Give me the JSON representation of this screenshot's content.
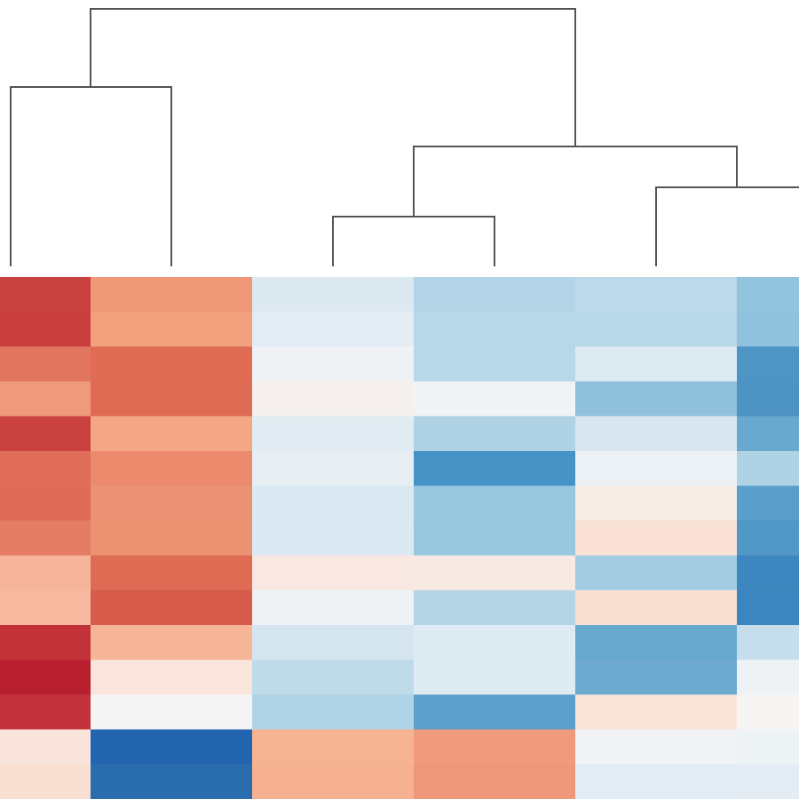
{
  "chart_data": {
    "type": "heatmap",
    "colors": [
      [
        "#c94040",
        "#ef9878",
        "#dde9f1",
        "#b3d4e6",
        "#bcd9ea",
        "#93c4de"
      ],
      [
        "#c83d3d",
        "#f2a17e",
        "#e3edf3",
        "#b8d7e8",
        "#b9d8e9",
        "#90c2dd"
      ],
      [
        "#e27560",
        "#e06c56",
        "#eef2f5",
        "#b8d7e8",
        "#dceaf2",
        "#4e94c5"
      ],
      [
        "#ef9a7a",
        "#df6b55",
        "#f5f0ee",
        "#f1f3f5",
        "#8fc1dd",
        "#4d93c4"
      ],
      [
        "#c94240",
        "#f4a784",
        "#e1ebf2",
        "#b0d2e5",
        "#d8e7f1",
        "#6aa9cf"
      ],
      [
        "#e06d58",
        "#eb8a6d",
        "#e6eef4",
        "#4793c5",
        "#ecf1f5",
        "#b0d2e5"
      ],
      [
        "#e06c58",
        "#ec9173",
        "#dae8f1",
        "#99c7e0",
        "#f7ebe6",
        "#5a9fcb"
      ],
      [
        "#e57d66",
        "#ec9172",
        "#dde9f2",
        "#99c7e0",
        "#f9e1d6",
        "#5198c8"
      ],
      [
        "#f6b59b",
        "#df6b55",
        "#f8e8e1",
        "#f8e9e3",
        "#a3cce3",
        "#3c87bf"
      ],
      [
        "#f7b99f",
        "#d85c4b",
        "#eef2f5",
        "#b5d5e7",
        "#f9e0d3",
        "#3b86bf"
      ],
      [
        "#c4323a",
        "#f6b597",
        "#d6e6f1",
        "#dfebf3",
        "#68a9cf",
        "#c6deec"
      ],
      [
        "#b8202f",
        "#f9e5dc",
        "#bedbea",
        "#dfebf3",
        "#6eaad0",
        "#eef2f5"
      ],
      [
        "#c2323a",
        "#f5f5f6",
        "#b1d3e6",
        "#5c9fcb",
        "#f9e4da",
        "#f6f5f4"
      ],
      [
        "#f8e4da",
        "#2364ae",
        "#f5b392",
        "#f09c7c",
        "#f1f3f5",
        "#edf2f5"
      ],
      [
        "#f8dfd2",
        "#2a6daf",
        "#f5b191",
        "#ee987a",
        "#e2ecf4",
        "#e4ecf4"
      ]
    ]
  }
}
